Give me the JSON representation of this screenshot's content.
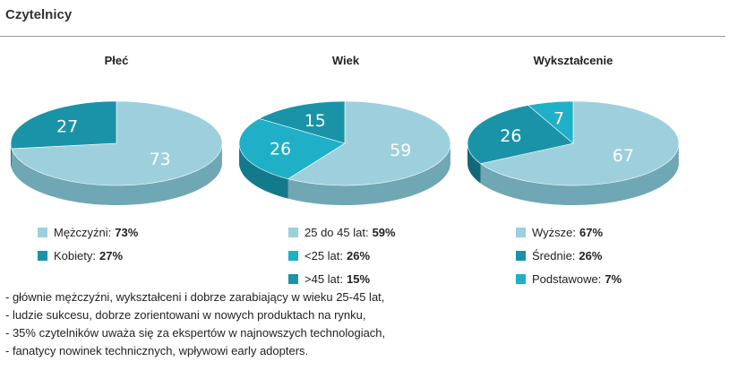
{
  "section_title": "Czytelnicy",
  "chart_data": [
    {
      "type": "pie",
      "title": "Płeć",
      "slices": [
        {
          "label": "Mężczyźni:",
          "value": 73,
          "pct": "73%",
          "color": "#9dd0dc",
          "side": "#6fa7b4"
        },
        {
          "label": "Kobiety:",
          "value": 27,
          "pct": "27%",
          "color": "#1a93a8",
          "side": "#126878"
        }
      ]
    },
    {
      "type": "pie",
      "title": "Wiek",
      "slices": [
        {
          "label": "25 do 45 lat:",
          "value": 59,
          "pct": "59%",
          "color": "#9dd0dc",
          "side": "#6fa7b4"
        },
        {
          "label": "<25 lat:",
          "value": 26,
          "pct": "26%",
          "color": "#1fb0c8",
          "side": "#137a8c"
        },
        {
          "label": ">45 lat:",
          "value": 15,
          "pct": "15%",
          "color": "#1a93a8",
          "side": "#126878"
        }
      ]
    },
    {
      "type": "pie",
      "title": "Wykształcenie",
      "slices": [
        {
          "label": "Wyższe:",
          "value": 67,
          "pct": "67%",
          "color": "#9dd0dc",
          "side": "#6fa7b4"
        },
        {
          "label": "Średnie:",
          "value": 26,
          "pct": "26%",
          "color": "#1a93a8",
          "side": "#126878"
        },
        {
          "label": "Podstawowe:",
          "value": 7,
          "pct": "7%",
          "color": "#1fb0c8",
          "side": "#137a8c"
        }
      ]
    }
  ],
  "notes": [
    "- głównie mężczyźni, wykształceni i dobrze zarabiający w wieku 25-45 lat,",
    "- ludzie sukcesu, dobrze zorientowani w nowych produktach na rynku,",
    "- 35% czytelników uważa się za ekspertów w najnowszych technologiach,",
    "- fanatycy nowinek technicznych, wpływowi early adopters."
  ]
}
